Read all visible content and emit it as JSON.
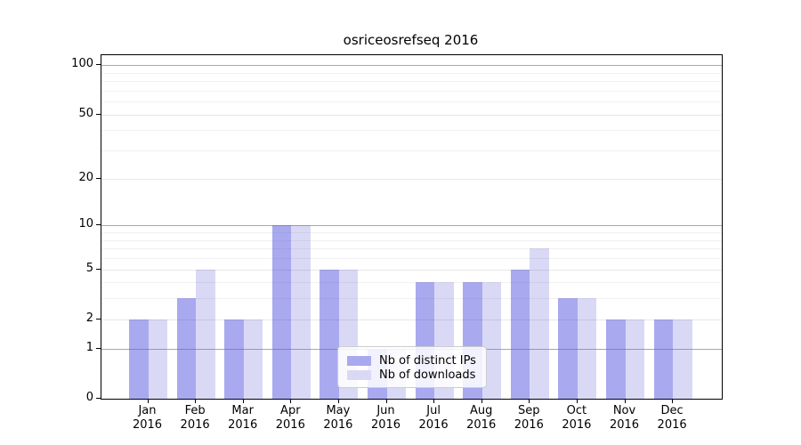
{
  "title": "osriceosrefseq 2016",
  "chart_data": {
    "type": "bar",
    "title": "osriceosrefseq 2016",
    "xlabel": "",
    "ylabel": "",
    "scale": "log1p",
    "months": [
      "Jan",
      "Feb",
      "Mar",
      "Apr",
      "May",
      "Jun",
      "Jul",
      "Aug",
      "Sep",
      "Oct",
      "Nov",
      "Dec"
    ],
    "year_label": "2016",
    "series": [
      {
        "name": "Nb of distinct IPs",
        "color": "#a9a9f0",
        "values": [
          2,
          3,
          2,
          10,
          5,
          1,
          4,
          4,
          5,
          3,
          2,
          2
        ]
      },
      {
        "name": "Nb of downloads",
        "color": "#d9d9f6",
        "values": [
          2,
          5,
          2,
          10,
          5,
          1,
          4,
          4,
          7,
          3,
          2,
          2
        ]
      }
    ],
    "y_ticks": [
      0,
      1,
      2,
      5,
      10,
      20,
      50,
      100
    ],
    "y_gridlines_strong": [
      1,
      10,
      100
    ],
    "y_gridlines_mid": [
      2,
      5,
      20,
      50
    ],
    "y_gridlines_minor": [
      3,
      4,
      6,
      7,
      8,
      9,
      30,
      40,
      60,
      70,
      80,
      90
    ],
    "ylim": [
      0,
      115
    ],
    "grid": "on",
    "legend_position": "lower center (inside plot)"
  }
}
